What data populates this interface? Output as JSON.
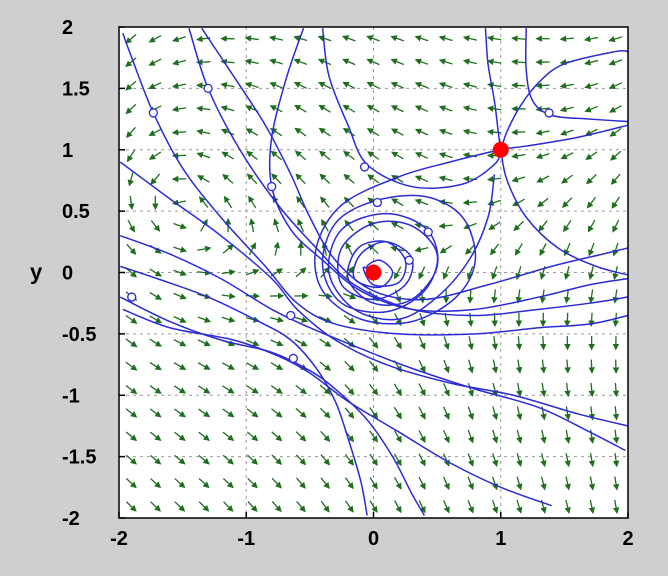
{
  "chart_data": {
    "type": "vector-field",
    "title": "",
    "xlabel": "",
    "ylabel": "y",
    "xlim": [
      -2,
      2
    ],
    "ylim": [
      -2,
      2
    ],
    "x_ticks": [
      -2,
      -1,
      0,
      1,
      2
    ],
    "y_ticks": [
      2,
      1.5,
      1,
      0.5,
      0,
      -0.5,
      -1,
      -1.5,
      -2
    ],
    "x_tick_labels": [
      "-2",
      "-1",
      "0",
      "1",
      "2"
    ],
    "y_tick_labels": [
      "2",
      "1.5",
      "1",
      "0.5",
      "0",
      "-0.5",
      "-1",
      "-1.5",
      "-2"
    ],
    "grid": true,
    "background": "#ffffff",
    "outer_background": "#cfcfcf",
    "colors": {
      "arrows": "#1e6e1e",
      "trajectories": "#2b2bd6",
      "equilibria": "#ff0000",
      "grid": "#9a9a9a"
    },
    "equilibria": [
      {
        "x": 0,
        "y": 0
      },
      {
        "x": 1,
        "y": 1
      }
    ],
    "trajectories": [
      [
        [
          -1.99,
          0.05
        ],
        [
          -1.7,
          -0.05
        ],
        [
          -1.3,
          -0.2
        ],
        [
          -0.9,
          -0.4
        ],
        [
          -0.65,
          -0.55
        ],
        [
          -0.45,
          -0.78
        ],
        [
          -0.3,
          -1.05
        ],
        [
          -0.2,
          -1.35
        ],
        [
          -0.1,
          -1.7
        ],
        [
          -0.05,
          -1.98
        ]
      ],
      [
        [
          -1.99,
          -0.2
        ],
        [
          -1.6,
          -0.4
        ],
        [
          -1.2,
          -0.55
        ],
        [
          -0.8,
          -0.65
        ],
        [
          -0.5,
          -0.8
        ],
        [
          -0.3,
          -0.95
        ],
        [
          -0.05,
          -1.2
        ],
        [
          0.15,
          -1.5
        ],
        [
          0.3,
          -1.8
        ],
        [
          0.4,
          -1.98
        ]
      ],
      [
        [
          -1.97,
          -0.3
        ],
        [
          -1.6,
          -0.45
        ],
        [
          -1.1,
          -0.55
        ],
        [
          -0.75,
          -0.68
        ],
        [
          -0.5,
          -0.82
        ],
        [
          -0.2,
          -1.05
        ],
        [
          0.2,
          -1.3
        ],
        [
          0.6,
          -1.55
        ],
        [
          1.0,
          -1.75
        ],
        [
          1.4,
          -1.9
        ]
      ],
      [
        [
          -1.99,
          0.9
        ],
        [
          -1.6,
          0.6
        ],
        [
          -1.2,
          0.3
        ],
        [
          -0.8,
          -0.05
        ],
        [
          -0.6,
          -0.3
        ],
        [
          -0.3,
          -0.55
        ],
        [
          0.1,
          -0.75
        ],
        [
          0.6,
          -0.9
        ],
        [
          1.1,
          -1.0
        ],
        [
          1.6,
          -1.15
        ],
        [
          2.0,
          -1.25
        ]
      ],
      [
        [
          -1.99,
          0.3
        ],
        [
          -1.6,
          0.15
        ],
        [
          -1.2,
          -0.05
        ],
        [
          -0.8,
          -0.3
        ],
        [
          -0.5,
          -0.45
        ],
        [
          -0.1,
          -0.62
        ],
        [
          0.3,
          -0.78
        ],
        [
          0.8,
          -0.95
        ],
        [
          1.3,
          -1.1
        ],
        [
          1.7,
          -1.3
        ],
        [
          1.98,
          -1.45
        ]
      ],
      [
        [
          -1.97,
          1.95
        ],
        [
          -1.9,
          1.75
        ],
        [
          -1.73,
          1.3
        ],
        [
          -1.5,
          0.85
        ],
        [
          -1.2,
          0.45
        ],
        [
          -0.85,
          0.05
        ],
        [
          -0.6,
          -0.25
        ],
        [
          -0.3,
          -0.42
        ],
        [
          0.2,
          -0.5
        ],
        [
          0.8,
          -0.5
        ],
        [
          1.3,
          -0.45
        ],
        [
          1.7,
          -0.42
        ],
        [
          2.0,
          -0.35
        ]
      ],
      [
        [
          -1.45,
          1.99
        ],
        [
          -1.3,
          1.5
        ],
        [
          -1.05,
          1.0
        ],
        [
          -0.75,
          0.55
        ],
        [
          -0.45,
          0.2
        ],
        [
          -0.15,
          -0.1
        ],
        [
          0.3,
          -0.3
        ],
        [
          0.8,
          -0.35
        ],
        [
          1.3,
          -0.3
        ],
        [
          1.7,
          -0.25
        ],
        [
          2.0,
          -0.2
        ]
      ],
      [
        [
          -0.55,
          1.99
        ],
        [
          -0.68,
          1.6
        ],
        [
          -0.8,
          1.1
        ],
        [
          -0.8,
          0.7
        ],
        [
          -0.65,
          0.35
        ],
        [
          -0.4,
          0.1
        ],
        [
          -0.1,
          -0.15
        ],
        [
          0.3,
          -0.3
        ],
        [
          0.8,
          -0.3
        ],
        [
          1.3,
          -0.2
        ],
        [
          1.7,
          -0.1
        ],
        [
          2.0,
          -0.05
        ]
      ],
      [
        [
          -1.35,
          1.99
        ],
        [
          -1.1,
          1.6
        ],
        [
          -0.85,
          1.2
        ],
        [
          -0.65,
          0.8
        ],
        [
          -0.5,
          0.45
        ],
        [
          -0.3,
          0.1
        ],
        [
          0.0,
          -0.15
        ],
        [
          0.4,
          -0.22
        ],
        [
          0.9,
          -0.1
        ],
        [
          1.4,
          0.05
        ],
        [
          1.8,
          0.15
        ],
        [
          2.0,
          0.2
        ]
      ],
      [
        [
          -0.4,
          1.99
        ],
        [
          -0.35,
          1.6
        ],
        [
          -0.2,
          1.2
        ],
        [
          -0.05,
          0.88
        ],
        [
          0.3,
          0.7
        ],
        [
          0.7,
          0.72
        ],
        [
          0.95,
          0.88
        ],
        [
          1.0,
          1.0
        ],
        [
          1.05,
          1.15
        ],
        [
          1.15,
          1.35
        ],
        [
          1.3,
          1.55
        ],
        [
          1.5,
          1.7
        ],
        [
          1.9,
          1.8
        ],
        [
          2.0,
          1.8
        ]
      ],
      [
        [
          2.0,
          1.23
        ],
        [
          1.7,
          1.25
        ],
        [
          1.4,
          1.28
        ],
        [
          1.25,
          1.4
        ],
        [
          1.2,
          1.65
        ],
        [
          1.2,
          1.99
        ]
      ],
      [
        [
          2.0,
          1.2
        ],
        [
          1.6,
          1.1
        ],
        [
          1.2,
          1.03
        ],
        [
          1.0,
          1.0
        ],
        [
          0.6,
          0.9
        ],
        [
          0.2,
          0.78
        ],
        [
          -0.25,
          0.55
        ],
        [
          -0.45,
          0.2
        ],
        [
          -0.4,
          -0.15
        ],
        [
          -0.1,
          -0.38
        ],
        [
          0.3,
          -0.4
        ],
        [
          0.65,
          -0.2
        ],
        [
          0.8,
          0.1
        ],
        [
          0.7,
          0.45
        ],
        [
          0.4,
          0.62
        ],
        [
          0.0,
          0.58
        ],
        [
          -0.3,
          0.4
        ],
        [
          -0.4,
          0.05
        ],
        [
          -0.25,
          -0.25
        ],
        [
          0.1,
          -0.32
        ],
        [
          0.4,
          -0.15
        ],
        [
          0.5,
          0.15
        ],
        [
          0.3,
          0.38
        ],
        [
          0.0,
          0.4
        ],
        [
          -0.25,
          0.2
        ],
        [
          -0.25,
          -0.1
        ],
        [
          0.0,
          -0.22
        ],
        [
          0.25,
          -0.1
        ],
        [
          0.3,
          0.12
        ],
        [
          0.1,
          0.25
        ],
        [
          -0.1,
          0.15
        ],
        [
          -0.15,
          -0.05
        ],
        [
          0.05,
          -0.12
        ],
        [
          0.15,
          0.0
        ],
        [
          0.05,
          0.1
        ],
        [
          -0.05,
          0.05
        ],
        [
          0.0,
          0.0
        ]
      ],
      [
        [
          0.95,
          0.8
        ],
        [
          0.9,
          0.45
        ],
        [
          0.75,
          0.1
        ],
        [
          0.5,
          -0.2
        ],
        [
          0.2,
          -0.38
        ],
        [
          -0.15,
          -0.3
        ],
        [
          -0.35,
          0.0
        ],
        [
          -0.25,
          0.35
        ],
        [
          0.1,
          0.48
        ],
        [
          0.42,
          0.35
        ],
        [
          0.5,
          0.05
        ],
        [
          0.3,
          -0.22
        ],
        [
          0.0,
          -0.25
        ],
        [
          -0.2,
          -0.05
        ],
        [
          -0.12,
          0.2
        ],
        [
          0.1,
          0.25
        ],
        [
          0.25,
          0.1
        ],
        [
          0.2,
          -0.08
        ],
        [
          0.0,
          -0.1
        ],
        [
          -0.08,
          0.04
        ],
        [
          0.0,
          0.0
        ]
      ],
      [
        [
          0.88,
          1.99
        ],
        [
          0.9,
          1.7
        ],
        [
          0.95,
          1.4
        ],
        [
          0.98,
          1.15
        ],
        [
          1.0,
          1.0
        ],
        [
          1.05,
          0.75
        ],
        [
          1.2,
          0.45
        ],
        [
          1.45,
          0.2
        ],
        [
          1.75,
          0.05
        ],
        [
          2.0,
          -0.02
        ]
      ]
    ],
    "trajectory_markers": [
      [
        -1.73,
        1.3
      ],
      [
        -1.3,
        1.5
      ],
      [
        -0.8,
        0.7
      ],
      [
        -0.07,
        0.86
      ],
      [
        0.03,
        0.57
      ],
      [
        0.43,
        0.33
      ],
      [
        0.28,
        0.1
      ],
      [
        1.38,
        1.3
      ],
      [
        -0.65,
        -0.35
      ],
      [
        -0.63,
        -0.7
      ],
      [
        -1.9,
        -0.2
      ]
    ]
  }
}
